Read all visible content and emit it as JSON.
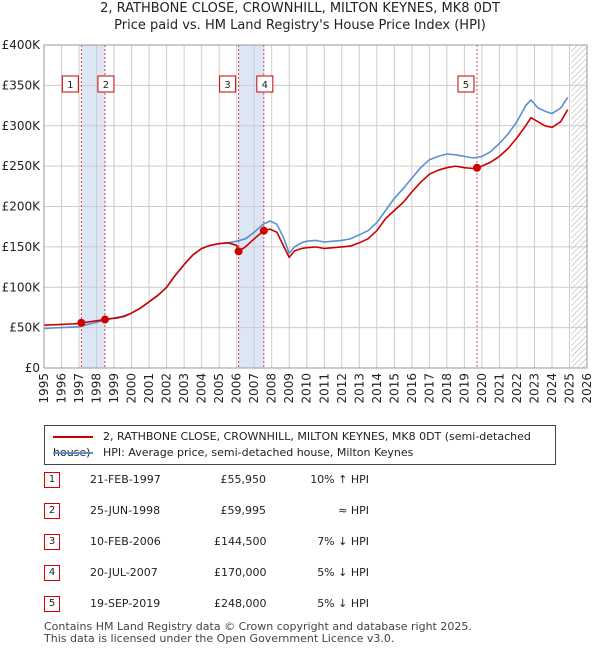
{
  "title_line1": "2, RATHBONE CLOSE, CROWNHILL, MILTON KEYNES, MK8 0DT",
  "title_line2": "Price paid vs. HM Land Registry's House Price Index (HPI)",
  "colors": {
    "property": "#cc0000",
    "hpi": "#5b8fd0",
    "shade": "#dde6f5",
    "grid": "#cccccc"
  },
  "chart_data": {
    "type": "line",
    "x_ticks": [
      "1995",
      "1996",
      "1997",
      "1998",
      "1999",
      "2000",
      "2001",
      "2002",
      "2003",
      "2004",
      "2005",
      "2006",
      "2007",
      "2008",
      "2009",
      "2010",
      "2011",
      "2012",
      "2013",
      "2014",
      "2015",
      "2016",
      "2017",
      "2018",
      "2019",
      "2020",
      "2021",
      "2022",
      "2023",
      "2024",
      "2025",
      "2026"
    ],
    "y_ticks": [
      "£0",
      "£50K",
      "£100K",
      "£150K",
      "£200K",
      "£250K",
      "£300K",
      "£350K",
      "£400K"
    ],
    "xlim": [
      1995,
      2026
    ],
    "ylim": [
      0,
      400000
    ],
    "grid": true,
    "series": [
      {
        "name": "2, RATHBONE CLOSE, CROWNHILL, MILTON KEYNES, MK8 0DT (semi-detached house)",
        "x": [
          1995.0,
          1995.5,
          1996.0,
          1996.5,
          1997.0,
          1997.13,
          1997.5,
          1998.0,
          1998.48,
          1998.8,
          1999.2,
          1999.6,
          2000.0,
          2000.5,
          2001.0,
          2001.5,
          2002.0,
          2002.5,
          2003.0,
          2003.5,
          2004.0,
          2004.5,
          2005.0,
          2005.5,
          2006.0,
          2006.11,
          2006.5,
          2007.0,
          2007.55,
          2007.9,
          2008.3,
          2008.7,
          2009.0,
          2009.3,
          2009.7,
          2010.0,
          2010.5,
          2011.0,
          2011.5,
          2012.0,
          2012.5,
          2013.0,
          2013.5,
          2014.0,
          2014.5,
          2015.0,
          2015.5,
          2016.0,
          2016.5,
          2017.0,
          2017.5,
          2018.0,
          2018.5,
          2019.0,
          2019.5,
          2019.72,
          2020.0,
          2020.5,
          2021.0,
          2021.5,
          2022.0,
          2022.5,
          2022.8,
          2023.2,
          2023.6,
          2024.0,
          2024.5,
          2024.9
        ],
        "y": [
          53000,
          53500,
          54000,
          54500,
          55000,
          55950,
          57000,
          58500,
          59995,
          61000,
          62000,
          64000,
          68000,
          74000,
          82000,
          90000,
          100000,
          115000,
          128000,
          140000,
          148000,
          152000,
          154000,
          155000,
          152000,
          144500,
          150000,
          160000,
          170000,
          172000,
          168000,
          150000,
          137000,
          145000,
          148000,
          149000,
          150000,
          148000,
          149000,
          150000,
          151000,
          155000,
          160000,
          170000,
          185000,
          195000,
          205000,
          218000,
          230000,
          240000,
          245000,
          248000,
          250000,
          248000,
          247000,
          248000,
          250000,
          255000,
          262000,
          272000,
          285000,
          300000,
          310000,
          305000,
          300000,
          298000,
          305000,
          320000
        ]
      },
      {
        "name": "HPI: Average price, semi-detached house, Milton Keynes",
        "x": [
          1995.0,
          1995.5,
          1996.0,
          1996.5,
          1997.0,
          1997.5,
          1998.0,
          1998.5,
          1999.0,
          1999.5,
          2000.0,
          2000.5,
          2001.0,
          2001.5,
          2002.0,
          2002.5,
          2003.0,
          2003.5,
          2004.0,
          2004.5,
          2005.0,
          2005.5,
          2006.0,
          2006.5,
          2007.0,
          2007.5,
          2007.9,
          2008.3,
          2008.7,
          2009.0,
          2009.3,
          2009.7,
          2010.0,
          2010.5,
          2011.0,
          2011.5,
          2012.0,
          2012.5,
          2013.0,
          2013.5,
          2014.0,
          2014.5,
          2015.0,
          2015.5,
          2016.0,
          2016.5,
          2017.0,
          2017.5,
          2018.0,
          2018.5,
          2019.0,
          2019.5,
          2020.0,
          2020.5,
          2021.0,
          2021.5,
          2022.0,
          2022.5,
          2022.8,
          2023.2,
          2023.6,
          2024.0,
          2024.5,
          2024.9
        ],
        "y": [
          49000,
          49500,
          50000,
          50500,
          51000,
          54000,
          56500,
          59500,
          62000,
          64000,
          68000,
          74000,
          82000,
          90000,
          100000,
          115000,
          128000,
          140000,
          148000,
          152000,
          154000,
          155000,
          157000,
          160000,
          168000,
          178000,
          182000,
          178000,
          160000,
          142000,
          150000,
          155000,
          157000,
          158000,
          156000,
          157000,
          158000,
          160000,
          165000,
          170000,
          180000,
          195000,
          210000,
          222000,
          235000,
          248000,
          258000,
          262000,
          265000,
          264000,
          262000,
          260000,
          262000,
          268000,
          278000,
          290000,
          305000,
          325000,
          332000,
          322000,
          318000,
          315000,
          322000,
          335000
        ]
      }
    ],
    "sales": [
      {
        "num": "1",
        "date": "21-FEB-1997",
        "price": "£55,950",
        "hpi": "10% ↑ HPI",
        "x": 1997.13,
        "y": 55950
      },
      {
        "num": "2",
        "date": "25-JUN-1998",
        "price": "£59,995",
        "hpi": "≈ HPI",
        "x": 1998.48,
        "y": 59995
      },
      {
        "num": "3",
        "date": "10-FEB-2006",
        "price": "£144,500",
        "hpi": "7% ↓ HPI",
        "x": 2006.11,
        "y": 144500
      },
      {
        "num": "4",
        "date": "20-JUL-2007",
        "price": "£170,000",
        "hpi": "5% ↓ HPI",
        "x": 2007.55,
        "y": 170000
      },
      {
        "num": "5",
        "date": "19-SEP-2019",
        "price": "£248,000",
        "hpi": "5% ↓ HPI",
        "x": 2019.72,
        "y": 248000
      }
    ],
    "shaded_spans": [
      [
        1997.13,
        1998.48
      ],
      [
        2006.11,
        2007.55
      ]
    ],
    "future_hatch_from": 2025.1
  },
  "legend": {
    "property": "2, RATHBONE CLOSE, CROWNHILL, MILTON KEYNES, MK8 0DT (semi-detached house)",
    "hpi": "HPI: Average price, semi-detached house, Milton Keynes"
  },
  "footer_line1": "Contains HM Land Registry data © Crown copyright and database right 2025.",
  "footer_line2": "This data is licensed under the Open Government Licence v3.0."
}
